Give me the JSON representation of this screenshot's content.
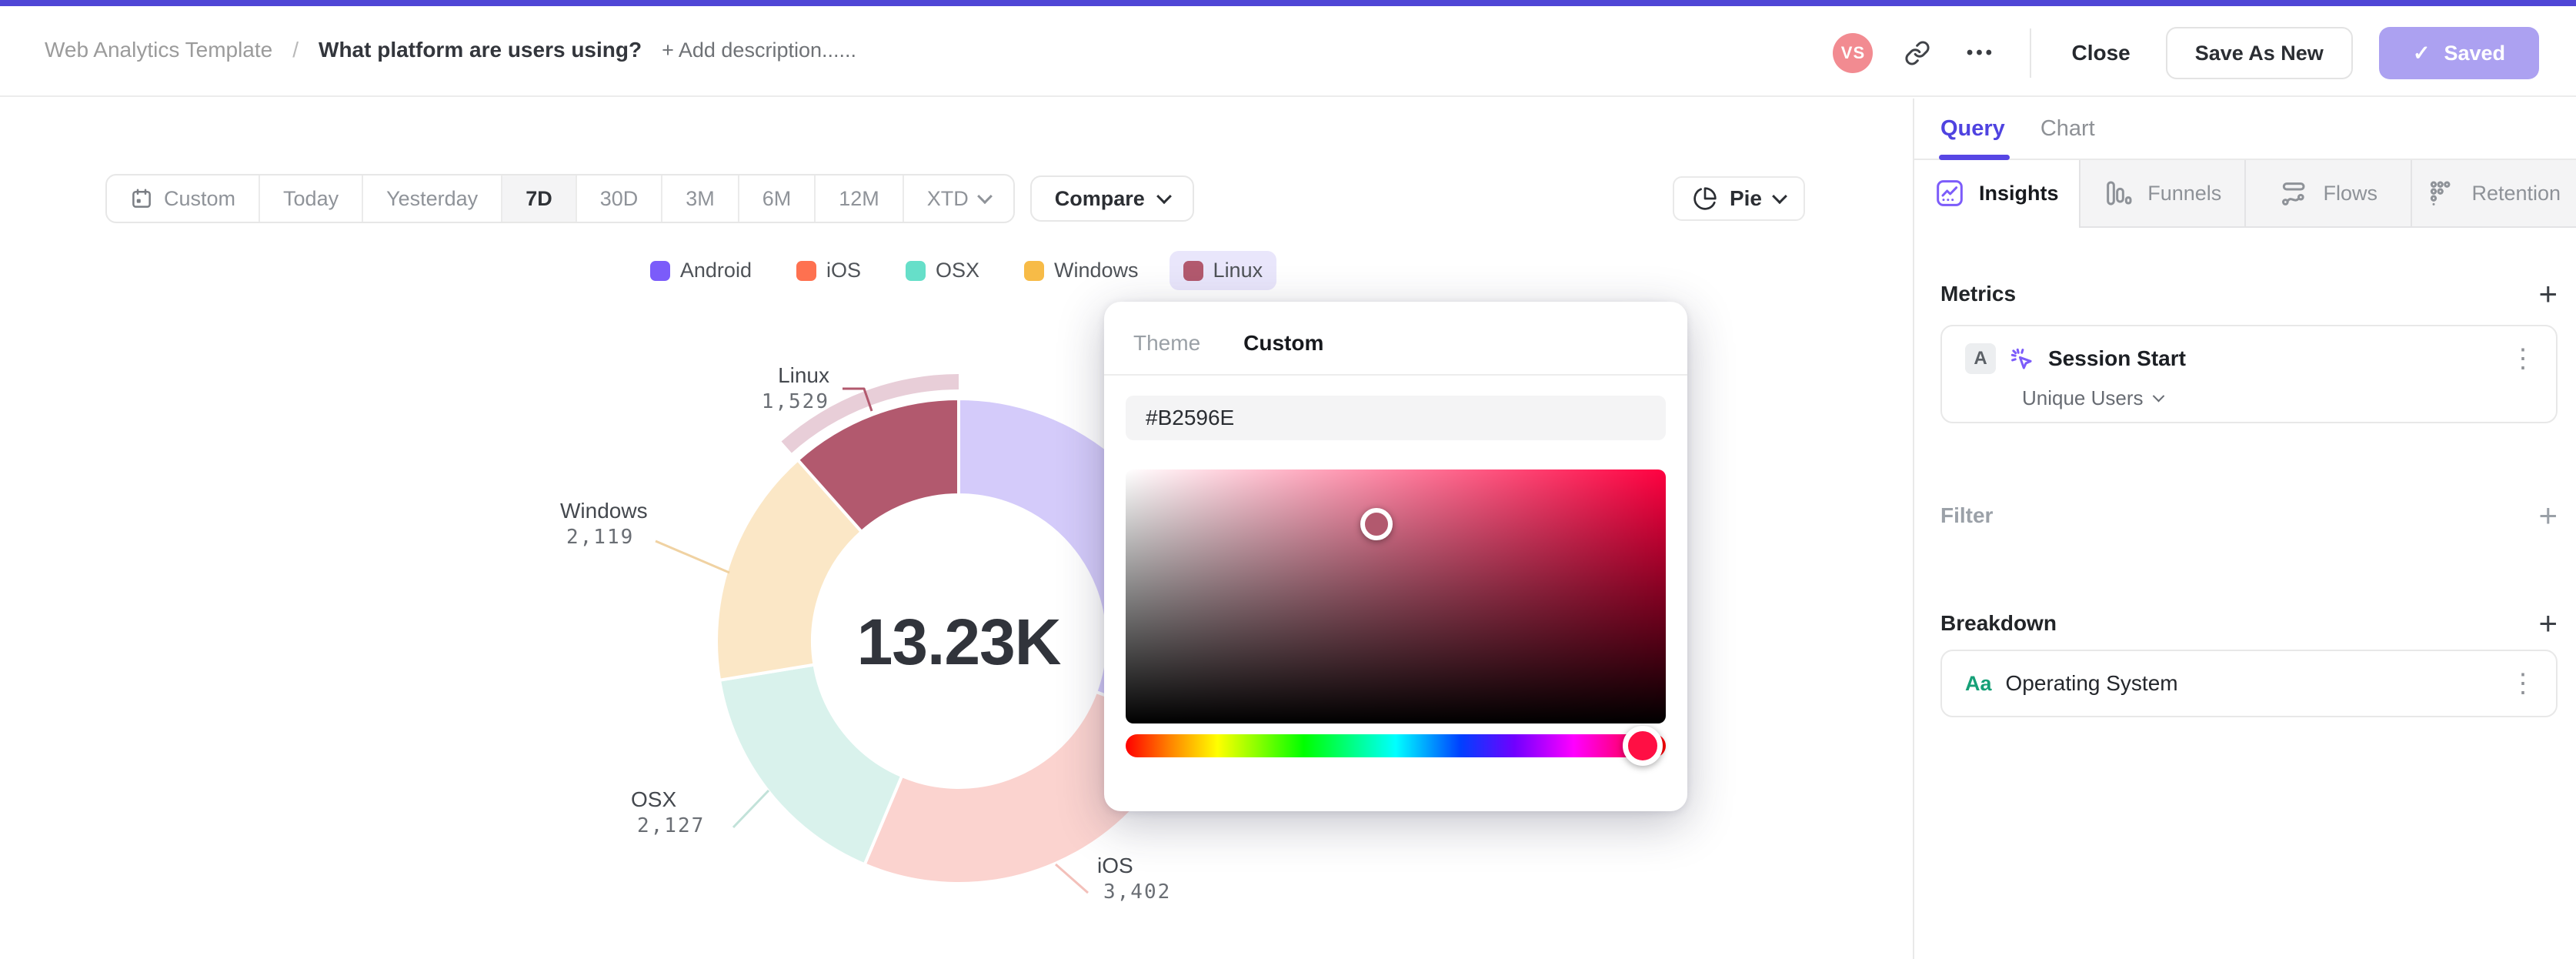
{
  "accent_color": "#4f46d6",
  "icons": {
    "plus": "+",
    "kebab": "⋮",
    "ellipsis": "•••",
    "check": "✓",
    "avatar_color": "#f28b91"
  },
  "header": {
    "breadcrumb": "Web Analytics Template",
    "separator": "/",
    "title": "What platform are users using?",
    "add_description": "+ Add description......",
    "avatar_initials": "VS",
    "close_label": "Close",
    "save_as_new_label": "Save As New",
    "saved_label": "Saved",
    "saved_button_color": "#aca1f1"
  },
  "toolbar": {
    "ranges": [
      "Custom",
      "Today",
      "Yesterday",
      "7D",
      "30D",
      "3M",
      "6M",
      "12M",
      "XTD"
    ],
    "active_range": "7D",
    "compare_label": "Compare",
    "chart_type_label": "Pie"
  },
  "legend": {
    "items": [
      {
        "label": "Android",
        "color": "#7b5cfa",
        "selected": false
      },
      {
        "label": "iOS",
        "color": "#fe7150",
        "selected": false
      },
      {
        "label": "OSX",
        "color": "#66dfc9",
        "selected": false
      },
      {
        "label": "Windows",
        "color": "#f7bb47",
        "selected": false
      },
      {
        "label": "Linux",
        "color": "#b2596e",
        "selected": true
      }
    ]
  },
  "chart_data": {
    "type": "pie",
    "center_label": "13.23K",
    "total": 13230,
    "categories": [
      "Android",
      "iOS",
      "OSX",
      "Windows",
      "Linux"
    ],
    "values": [
      4053,
      3402,
      2127,
      2119,
      1529
    ],
    "colors": [
      "#7b5cfa",
      "#fe7150",
      "#66dfc9",
      "#f7bb47",
      "#b2596e"
    ],
    "muted_colors": [
      "#d4cbfa",
      "#fbd3cf",
      "#d9f2ec",
      "#fbe7c6",
      "#b2596e"
    ],
    "selected_slice": "Linux",
    "selection_ring_color": "#e8ced8",
    "value_labels": [
      {
        "name": "Linux",
        "value": "1,529"
      },
      {
        "name": "Windows",
        "value": "2,119"
      },
      {
        "name": "OSX",
        "value": "2,127"
      },
      {
        "name": "iOS",
        "value": "3,402"
      }
    ],
    "legend_position": "top",
    "donut": true
  },
  "color_picker": {
    "tabs": [
      {
        "label": "Theme",
        "active": false
      },
      {
        "label": "Custom",
        "active": true
      }
    ],
    "hex_value": "#B2596E",
    "current_color": "#b2596e",
    "hue_handle_color": "#ff0f44",
    "sat_handle_pos": {
      "left_pct": 46.5,
      "top_pct": 21.5
    },
    "hue_handle_pos_pct": 95.7
  },
  "sidebar": {
    "tabs": [
      {
        "label": "Query",
        "active": true
      },
      {
        "label": "Chart",
        "active": false
      }
    ],
    "tab_accent": "#5746e4",
    "mode_tabs": [
      {
        "label": "Insights",
        "icon": "insights-icon",
        "active": true
      },
      {
        "label": "Funnels",
        "icon": "funnels-icon",
        "active": false
      },
      {
        "label": "Flows",
        "icon": "flows-icon",
        "active": false
      },
      {
        "label": "Retention",
        "icon": "retention-icon",
        "active": false
      }
    ],
    "metrics": {
      "heading": "Metrics",
      "items": [
        {
          "badge": "A",
          "label": "Session Start",
          "sub_label": "Unique Users"
        }
      ]
    },
    "filter": {
      "heading": "Filter"
    },
    "breakdown": {
      "heading": "Breakdown",
      "items": [
        {
          "icon_text": "Aa",
          "label": "Operating System"
        }
      ]
    }
  }
}
